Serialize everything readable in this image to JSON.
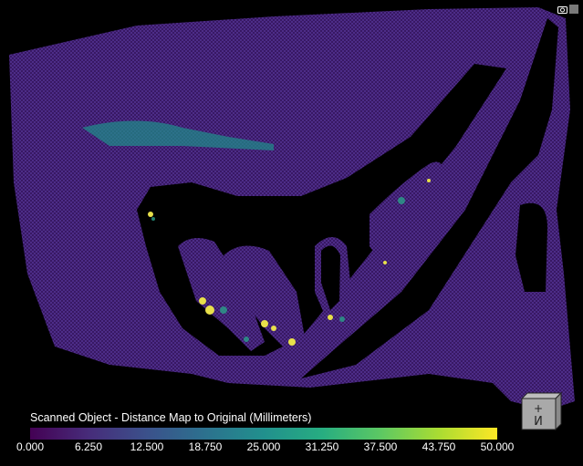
{
  "colorbar": {
    "title": "Scanned Object - Distance Map to Original (Millimeters)",
    "ticks": [
      "0.000",
      "6.250",
      "12.500",
      "18.750",
      "25.000",
      "31.250",
      "37.500",
      "43.750",
      "50.000"
    ],
    "range": [
      0,
      50
    ],
    "colormap": "viridis"
  },
  "toolbar": {
    "camera_icon": "camera-icon",
    "settings_icon": "square-icon"
  },
  "orientation_cube": {
    "front_symbol": "+И"
  },
  "colors": {
    "background": "#000000",
    "mesh": "#3e1f78",
    "hot": "#fde725",
    "mid": "#21908d"
  }
}
